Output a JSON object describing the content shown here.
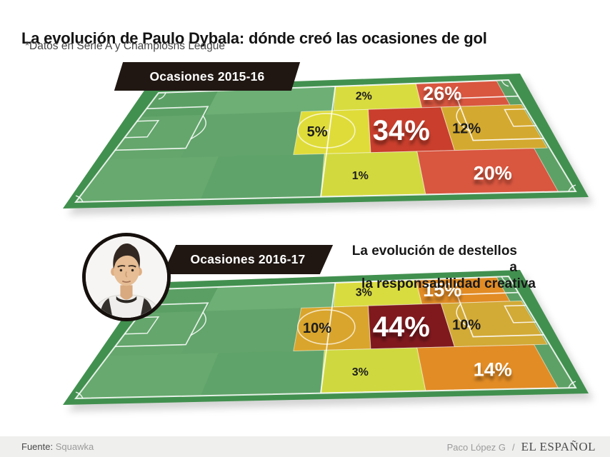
{
  "header": {
    "title": "La evolución de Paulo Dybala: dónde creó las ocasiones de gol",
    "subtitle": "*Datos en Serie A y Champiosns League"
  },
  "annotation": {
    "line1": "La evolución de destellos a",
    "line2": "la responsabilidad creativa"
  },
  "player": {
    "name": "Paulo Dybala",
    "photo": "circular-headshot"
  },
  "footer": {
    "source_label": "Fuente:",
    "source_value": "Squawka",
    "credit_author": "Paco López G",
    "credit_separator": "/",
    "brand": "EL ESPAÑOL"
  },
  "colors": {
    "pitch_border_green": "#42904f",
    "pitch_base_green": "#69aa71",
    "banner_black": "#201712",
    "line_white": "#ffffff"
  },
  "chart_data": [
    {
      "type": "heatmap",
      "title": "Ocasiones 2015-16",
      "subject": "Paulo Dybala — % de ocasiones de gol creadas por zona del campo (vista en perspectiva, ataque hacia la derecha)",
      "zones": [
        {
          "zone": "middle-third-far-flank",
          "label": "2%",
          "value": 2,
          "color": "#d9dc3f",
          "emphasis": "small-dark"
        },
        {
          "zone": "final-third-far-flank",
          "label": "26%",
          "value": 26,
          "color": "#d9563f",
          "emphasis": "large-light"
        },
        {
          "zone": "centre-circle",
          "label": "5%",
          "value": 5,
          "color": "#dfdc39",
          "emphasis": "medium-dark"
        },
        {
          "zone": "edge-of-box-central",
          "label": "34%",
          "value": 34,
          "color": "#c93e2c",
          "emphasis": "xlarge-light"
        },
        {
          "zone": "penalty-area",
          "label": "12%",
          "value": 12,
          "color": "#d4a92f",
          "emphasis": "medium-dark"
        },
        {
          "zone": "middle-third-near-flank",
          "label": "1%",
          "value": 1,
          "color": "#d2d93f",
          "emphasis": "small-dark"
        },
        {
          "zone": "final-third-near-flank",
          "label": "20%",
          "value": 20,
          "color": "#d9563f",
          "emphasis": "large-light"
        }
      ]
    },
    {
      "type": "heatmap",
      "title": "Ocasiones 2016-17",
      "subject": "Paulo Dybala — % de ocasiones de gol creadas por zona del campo (vista en perspectiva, ataque hacia la derecha)",
      "zones": [
        {
          "zone": "middle-third-far-flank",
          "label": "3%",
          "value": 3,
          "color": "#d9dc3f",
          "emphasis": "small-dark"
        },
        {
          "zone": "final-third-far-flank",
          "label": "15%",
          "value": 15,
          "color": "#e28c25",
          "emphasis": "large-light"
        },
        {
          "zone": "centre-circle",
          "label": "10%",
          "value": 10,
          "color": "#d9a52c",
          "emphasis": "medium-dark"
        },
        {
          "zone": "edge-of-box-central",
          "label": "44%",
          "value": 44,
          "color": "#7f191e",
          "emphasis": "xlarge-light"
        },
        {
          "zone": "penalty-area",
          "label": "10%",
          "value": 10,
          "color": "#d2aa36",
          "emphasis": "medium-dark"
        },
        {
          "zone": "middle-third-near-flank",
          "label": "3%",
          "value": 3,
          "color": "#cfd93f",
          "emphasis": "small-dark"
        },
        {
          "zone": "final-third-near-flank",
          "label": "14%",
          "value": 14,
          "color": "#e28c25",
          "emphasis": "large-light"
        }
      ]
    }
  ]
}
